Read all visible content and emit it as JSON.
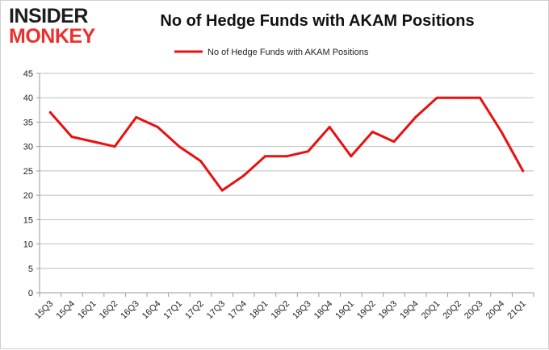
{
  "logo": {
    "line1": "INSIDER",
    "line2": "MONKEY"
  },
  "chart_data": {
    "type": "line",
    "title": "No of Hedge Funds with AKAM Positions",
    "xlabel": "",
    "ylabel": "",
    "ylim": [
      0,
      45
    ],
    "yticks": [
      0,
      5,
      10,
      15,
      20,
      25,
      30,
      35,
      40,
      45
    ],
    "grid": true,
    "legend_position": "top",
    "categories": [
      "15Q3",
      "15Q4",
      "16Q1",
      "16Q2",
      "16Q3",
      "16Q4",
      "17Q1",
      "17Q2",
      "17Q3",
      "17Q4",
      "18Q1",
      "18Q2",
      "18Q3",
      "18Q4",
      "19Q1",
      "19Q2",
      "19Q3",
      "19Q4",
      "20Q1",
      "20Q2",
      "20Q3",
      "20Q4",
      "21Q1"
    ],
    "series": [
      {
        "name": "No of Hedge Funds with AKAM Positions",
        "color": "#e81010",
        "values": [
          37,
          32,
          31,
          30,
          36,
          34,
          30,
          27,
          21,
          24,
          28,
          28,
          29,
          34,
          28,
          33,
          31,
          36,
          40,
          40,
          40,
          33,
          25
        ]
      }
    ]
  }
}
